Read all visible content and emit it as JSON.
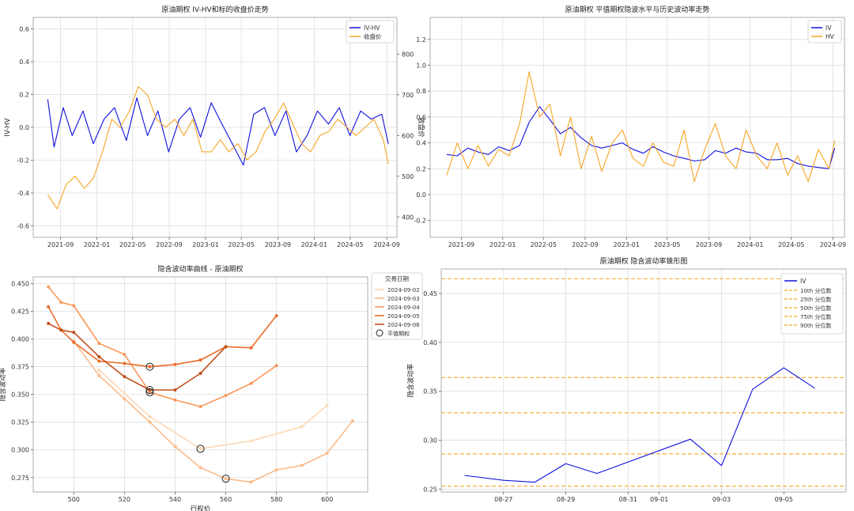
{
  "chart_data": [
    {
      "type": "line",
      "title": "原油期权 IV-HV和标的收盘价走势",
      "ylabel": "IV-HV",
      "y2label": "收盘价",
      "ylim": [
        -0.67,
        0.67
      ],
      "y2lim": [
        350,
        890
      ],
      "yticks": [
        -0.6,
        -0.4,
        -0.2,
        0.0,
        0.2,
        0.4,
        0.6
      ],
      "yticklabels": [
        "-0.6",
        "-0.4",
        "-0.2",
        "0.0",
        "0.2",
        "0.4",
        "0.6"
      ],
      "y2ticks": [
        400,
        500,
        600,
        700,
        800
      ],
      "y2ticklabels": [
        "400",
        "500",
        "600",
        "700",
        "800"
      ],
      "xlim": [
        "2021-06-01",
        "2024-10-05"
      ],
      "xticks": [
        "2021-09-01",
        "2022-01-01",
        "2022-05-01",
        "2022-09-01",
        "2023-01-01",
        "2023-05-01",
        "2023-09-01",
        "2024-01-01",
        "2024-05-01",
        "2024-09-01"
      ],
      "xticklabels": [
        "2021-09",
        "2022-01",
        "2022-05",
        "2022-09",
        "2023-01",
        "2023-05",
        "2023-09",
        "2024-01",
        "2024-05",
        "2024-09"
      ],
      "grid": true,
      "legend_position": "top-right",
      "series": [
        {
          "name": "IV-HV",
          "color": "#1010e0",
          "axis": "left",
          "x": [
            "2021-07-20",
            "2021-08-10",
            "2021-09-10",
            "2021-10-10",
            "2021-11-15",
            "2021-12-20",
            "2022-01-25",
            "2022-03-01",
            "2022-04-10",
            "2022-05-15",
            "2022-06-20",
            "2022-07-25",
            "2022-08-30",
            "2022-10-05",
            "2022-11-10",
            "2022-12-15",
            "2023-01-20",
            "2023-02-25",
            "2023-04-01",
            "2023-05-08",
            "2023-06-12",
            "2023-07-18",
            "2023-08-22",
            "2023-09-28",
            "2023-11-02",
            "2023-12-08",
            "2024-01-12",
            "2024-02-18",
            "2024-03-25",
            "2024-04-30",
            "2024-06-05",
            "2024-07-10",
            "2024-08-15",
            "2024-09-06"
          ],
          "values": [
            0.17,
            -0.12,
            0.12,
            -0.05,
            0.1,
            -0.1,
            0.05,
            0.12,
            -0.08,
            0.18,
            -0.05,
            0.1,
            -0.15,
            0.05,
            0.12,
            -0.06,
            0.15,
            0.02,
            -0.1,
            -0.23,
            0.08,
            0.12,
            -0.05,
            0.1,
            -0.15,
            -0.05,
            0.1,
            0.02,
            0.12,
            -0.05,
            0.1,
            0.05,
            0.08,
            -0.1
          ]
        },
        {
          "name": "收盘价",
          "color": "#f5a623",
          "axis": "right",
          "x": [
            "2021-07-20",
            "2021-08-20",
            "2021-09-20",
            "2021-10-20",
            "2021-11-20",
            "2021-12-20",
            "2022-01-20",
            "2022-02-20",
            "2022-03-20",
            "2022-04-20",
            "2022-05-20",
            "2022-06-20",
            "2022-07-20",
            "2022-08-20",
            "2022-09-20",
            "2022-10-20",
            "2022-11-20",
            "2022-12-20",
            "2023-01-20",
            "2023-02-20",
            "2023-03-20",
            "2023-04-20",
            "2023-05-20",
            "2023-06-20",
            "2023-07-20",
            "2023-08-20",
            "2023-09-20",
            "2023-10-20",
            "2023-11-20",
            "2023-12-20",
            "2024-01-20",
            "2024-02-20",
            "2024-03-20",
            "2024-04-20",
            "2024-05-20",
            "2024-06-20",
            "2024-07-20",
            "2024-08-20",
            "2024-09-06"
          ],
          "values": [
            455,
            420,
            480,
            500,
            470,
            495,
            560,
            640,
            620,
            660,
            720,
            700,
            640,
            620,
            640,
            600,
            640,
            560,
            560,
            590,
            560,
            580,
            540,
            560,
            610,
            640,
            680,
            630,
            580,
            560,
            600,
            610,
            640,
            620,
            600,
            620,
            640,
            590,
            530
          ]
        }
      ]
    },
    {
      "type": "line",
      "title": "原油期权 平值期权隐波水平与历史波动率走势",
      "ylim": [
        -0.33,
        1.37
      ],
      "yticks": [
        -0.2,
        0.0,
        0.2,
        0.4,
        0.6,
        0.8,
        1.0,
        1.2
      ],
      "yticklabels": [
        "-0.2",
        "0.0",
        "0.2",
        "0.4",
        "0.6",
        "0.8",
        "1.0",
        "1.2"
      ],
      "xlim": [
        "2021-06-01",
        "2024-10-05"
      ],
      "xticks": [
        "2021-09-01",
        "2022-01-01",
        "2022-05-01",
        "2022-09-01",
        "2023-01-01",
        "2023-05-01",
        "2023-09-01",
        "2024-01-01",
        "2024-05-01",
        "2024-09-01"
      ],
      "xticklabels": [
        "2021-09",
        "2022-01",
        "2022-05",
        "2022-09",
        "2023-01",
        "2023-05",
        "2023-09",
        "2024-01",
        "2024-05",
        "2024-09"
      ],
      "grid": true,
      "legend_position": "top-right",
      "series": [
        {
          "name": "IV",
          "color": "#1010e0",
          "x": [
            "2021-07-20",
            "2021-08-20",
            "2021-09-20",
            "2021-10-20",
            "2021-11-20",
            "2021-12-20",
            "2022-01-20",
            "2022-02-20",
            "2022-03-20",
            "2022-04-20",
            "2022-05-20",
            "2022-06-20",
            "2022-07-20",
            "2022-08-20",
            "2022-09-20",
            "2022-10-20",
            "2022-11-20",
            "2022-12-20",
            "2023-01-20",
            "2023-02-20",
            "2023-03-20",
            "2023-04-20",
            "2023-05-20",
            "2023-06-20",
            "2023-07-20",
            "2023-08-20",
            "2023-09-20",
            "2023-10-20",
            "2023-11-20",
            "2023-12-20",
            "2024-01-20",
            "2024-02-20",
            "2024-03-20",
            "2024-04-20",
            "2024-05-20",
            "2024-06-20",
            "2024-07-20",
            "2024-08-20",
            "2024-09-06"
          ],
          "values": [
            0.31,
            0.3,
            0.36,
            0.33,
            0.31,
            0.37,
            0.34,
            0.38,
            0.56,
            0.68,
            0.58,
            0.47,
            0.52,
            0.44,
            0.38,
            0.36,
            0.38,
            0.4,
            0.35,
            0.32,
            0.37,
            0.33,
            0.3,
            0.28,
            0.26,
            0.27,
            0.34,
            0.32,
            0.36,
            0.33,
            0.32,
            0.27,
            0.27,
            0.28,
            0.24,
            0.22,
            0.21,
            0.2,
            0.36
          ]
        },
        {
          "name": "HV",
          "color": "#f5a623",
          "x": [
            "2021-07-20",
            "2021-08-20",
            "2021-09-20",
            "2021-10-20",
            "2021-11-20",
            "2021-12-20",
            "2022-01-20",
            "2022-02-20",
            "2022-03-20",
            "2022-04-20",
            "2022-05-20",
            "2022-06-20",
            "2022-07-20",
            "2022-08-20",
            "2022-09-20",
            "2022-10-20",
            "2022-11-20",
            "2022-12-20",
            "2023-01-20",
            "2023-02-20",
            "2023-03-20",
            "2023-04-20",
            "2023-05-20",
            "2023-06-20",
            "2023-07-20",
            "2023-08-20",
            "2023-09-20",
            "2023-10-20",
            "2023-11-20",
            "2023-12-20",
            "2024-01-20",
            "2024-02-20",
            "2024-03-20",
            "2024-04-20",
            "2024-05-20",
            "2024-06-20",
            "2024-07-20",
            "2024-08-20",
            "2024-09-06"
          ],
          "values": [
            0.15,
            0.4,
            0.2,
            0.38,
            0.22,
            0.35,
            0.3,
            0.55,
            0.95,
            0.6,
            0.7,
            0.3,
            0.6,
            0.2,
            0.45,
            0.18,
            0.4,
            0.5,
            0.28,
            0.22,
            0.4,
            0.25,
            0.22,
            0.5,
            0.1,
            0.35,
            0.55,
            0.3,
            0.2,
            0.5,
            0.3,
            0.2,
            0.4,
            0.15,
            0.3,
            0.1,
            0.35,
            0.2,
            0.42
          ]
        }
      ]
    },
    {
      "type": "line",
      "title": "隐含波动率曲线 - 原油期权",
      "xlabel": "行权价",
      "ylabel": "隐含波动率",
      "xlim": [
        484,
        616
      ],
      "ylim": [
        0.262,
        0.456
      ],
      "xticks": [
        500,
        520,
        540,
        560,
        580,
        600
      ],
      "xticklabels": [
        "500",
        "520",
        "540",
        "560",
        "580",
        "600"
      ],
      "yticks": [
        0.275,
        0.3,
        0.325,
        0.35,
        0.375,
        0.4,
        0.425,
        0.45
      ],
      "yticklabels": [
        "0.275",
        "0.300",
        "0.325",
        "0.350",
        "0.375",
        "0.400",
        "0.425",
        "0.450"
      ],
      "grid": true,
      "legend_title": "交易日期",
      "legend_position": "outside-right",
      "atm_label": "平值期权",
      "series": [
        {
          "name": "2024-09-02",
          "color": "#fdd9b5",
          "x": [
            510,
            530,
            550,
            570,
            590,
            600
          ],
          "values": [
            0.372,
            0.33,
            0.301,
            0.308,
            0.321,
            0.34
          ],
          "atm": 550,
          "atm_value": 0.301
        },
        {
          "name": "2024-09-03",
          "color": "#fcbb8a",
          "x": [
            500,
            510,
            520,
            530,
            540,
            550,
            560,
            570,
            580,
            590,
            600,
            610
          ],
          "values": [
            0.398,
            0.367,
            0.346,
            0.325,
            0.303,
            0.284,
            0.274,
            0.271,
            0.282,
            0.286,
            0.297,
            0.326
          ],
          "atm": 560,
          "atm_value": 0.274
        },
        {
          "name": "2024-09-04",
          "color": "#f9985a",
          "x": [
            490,
            495,
            500,
            510,
            520,
            530,
            540,
            550,
            560,
            570,
            580
          ],
          "values": [
            0.447,
            0.433,
            0.43,
            0.396,
            0.386,
            0.352,
            0.345,
            0.339,
            0.349,
            0.36,
            0.376
          ],
          "atm": 530,
          "atm_value": 0.352
        },
        {
          "name": "2024-09-05",
          "color": "#ea6c2a",
          "x": [
            490,
            495,
            500,
            510,
            520,
            530,
            540,
            550,
            560,
            570,
            580
          ],
          "values": [
            0.429,
            0.408,
            0.397,
            0.38,
            0.378,
            0.375,
            0.377,
            0.381,
            0.393,
            0.392,
            0.421
          ],
          "atm": 530,
          "atm_value": 0.375
        },
        {
          "name": "2024-09-06",
          "color": "#c0501a",
          "x": [
            490,
            495,
            500,
            510,
            520,
            530,
            540,
            550,
            560
          ],
          "values": [
            0.414,
            0.408,
            0.406,
            0.384,
            0.366,
            0.354,
            0.354,
            0.369,
            0.393
          ],
          "atm": 530,
          "atm_value": 0.354
        }
      ]
    },
    {
      "type": "line",
      "title": "原油期权 隐含波动率锥形图",
      "ylabel": "隐含波动率",
      "ylim": [
        0.247,
        0.475
      ],
      "yticks": [
        0.25,
        0.3,
        0.35,
        0.4,
        0.45
      ],
      "yticklabels": [
        "0.25",
        "0.30",
        "0.35",
        "0.40",
        "0.45"
      ],
      "xlim": [
        "2024-08-25",
        "2024-09-07"
      ],
      "xticks": [
        "2024-08-27",
        "2024-08-29",
        "2024-08-31",
        "2024-09-01",
        "2024-09-03",
        "2024-09-05"
      ],
      "xticklabels": [
        "08-27",
        "08-29",
        "08-31",
        "09-01",
        "09-03",
        "09-05"
      ],
      "grid": true,
      "legend_position": "top-right",
      "series": [
        {
          "name": "IV",
          "color": "#1010e0",
          "x": [
            "2024-08-25T18:00",
            "2024-08-27T00:00",
            "2024-08-28T00:00",
            "2024-08-29T00:00",
            "2024-08-30T00:00",
            "2024-09-02T00:00",
            "2024-09-03T00:00",
            "2024-09-04T00:00",
            "2024-09-05T00:00",
            "2024-09-06T00:00"
          ],
          "values": [
            0.264,
            0.259,
            0.257,
            0.276,
            0.266,
            0.301,
            0.274,
            0.352,
            0.374,
            0.353
          ]
        }
      ],
      "percentiles": [
        {
          "name": "10th 分位数",
          "value": 0.253
        },
        {
          "name": "25th 分位数",
          "value": 0.286
        },
        {
          "name": "50th 分位数",
          "value": 0.328
        },
        {
          "name": "75th 分位数",
          "value": 0.364
        },
        {
          "name": "90th 分位数",
          "value": 0.465
        }
      ],
      "percentile_color": "#f5a623"
    }
  ]
}
